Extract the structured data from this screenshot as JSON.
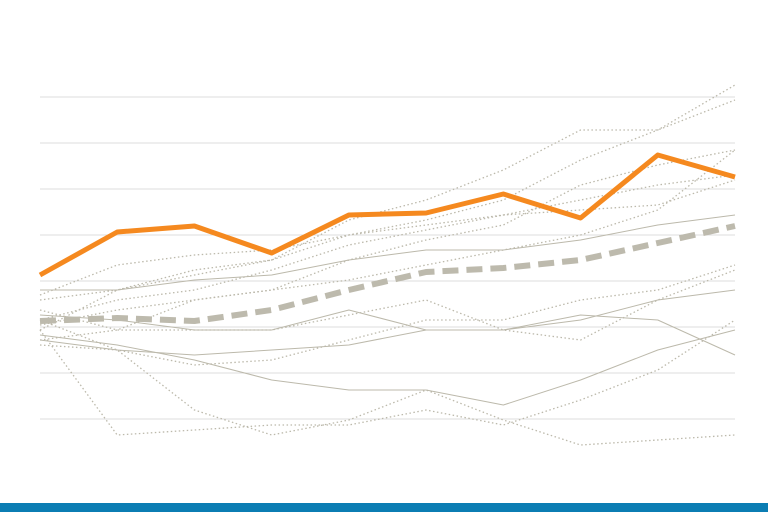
{
  "chart_data": {
    "type": "line",
    "categories": [
      null,
      null,
      null,
      null,
      null,
      null,
      null,
      null,
      null,
      null
    ],
    "ylim": [
      -30,
      345
    ],
    "yticks": [
      0,
      46,
      92,
      138,
      184,
      230,
      276,
      322
    ],
    "grid": true,
    "grid_color": "#dddddd",
    "series": [
      {
        "color": "#bcb9ab",
        "style": "dotted",
        "width": 1.3,
        "values": [
          79,
          89,
          119,
          129,
          159,
          179,
          194,
          234,
          254,
          269
        ]
      },
      {
        "color": "#bcb9ab",
        "style": "dotted",
        "width": 1.3,
        "values": [
          119,
          129,
          144,
          159,
          184,
          199,
          219,
          259,
          289,
          334
        ]
      },
      {
        "color": "#bcb9ab",
        "style": "dotted",
        "width": 1.3,
        "values": [
          99,
          119,
          129,
          149,
          174,
          189,
          204,
          219,
          234,
          244
        ]
      },
      {
        "color": "#bcb9ab",
        "style": "solid",
        "width": 1,
        "values": [
          84,
          74,
          59,
          39,
          29,
          29,
          14,
          39,
          69,
          89
        ]
      },
      {
        "color": "#bcb9ab",
        "style": "dotted",
        "width": 1.3,
        "values": [
          89,
          -16,
          -11,
          -6,
          -6,
          9,
          -6,
          19,
          49,
          99
        ]
      },
      {
        "color": "#bcb9ab",
        "style": "dotted",
        "width": 1.3,
        "values": [
          99,
          69,
          9,
          -16,
          -1,
          29,
          -1,
          -26,
          -21,
          -16
        ]
      },
      {
        "color": "#bcb9ab",
        "style": "solid",
        "width": 1,
        "values": [
          129,
          129,
          139,
          144,
          159,
          169,
          169,
          179,
          194,
          204
        ]
      },
      {
        "color": "#bcb9ab",
        "style": "dotted",
        "width": 1.3,
        "values": [
          74,
          69,
          54,
          59,
          79,
          99,
          99,
          119,
          129,
          154
        ]
      },
      {
        "color": "#bcb9ab",
        "style": "dotted",
        "width": 1.3,
        "values": [
          109,
          89,
          89,
          89,
          104,
          119,
          89,
          79,
          119,
          149
        ]
      },
      {
        "color": "#bcb9ab",
        "style": "dotted",
        "width": 1.3,
        "values": [
          124,
          154,
          164,
          169,
          184,
          194,
          204,
          209,
          214,
          239
        ]
      },
      {
        "color": "#bcb9ab",
        "style": "dotted",
        "width": 1.3,
        "values": [
          94,
          109,
          119,
          129,
          139,
          154,
          169,
          184,
          209,
          269
        ]
      },
      {
        "color": "#bcb9ab",
        "style": "solid",
        "width": 1,
        "values": [
          79,
          69,
          64,
          69,
          74,
          89,
          89,
          99,
          119,
          129
        ]
      },
      {
        "color": "#bcb9ab",
        "style": "dotted",
        "width": 1.3,
        "values": [
          89,
          129,
          149,
          159,
          199,
          219,
          249,
          289,
          289,
          319
        ]
      },
      {
        "color": "#bcb9ab",
        "style": "solid",
        "width": 1,
        "values": [
          104,
          99,
          89,
          89,
          109,
          89,
          89,
          104,
          99,
          64
        ]
      },
      {
        "color": "#bdbaad",
        "style": "dashed",
        "width": 6,
        "values": [
          98,
          101,
          98,
          109,
          129,
          147,
          151,
          159,
          176,
          193
        ]
      },
      {
        "color": "#f5891f",
        "style": "solid",
        "width": 5,
        "values": [
          144,
          187,
          193,
          166,
          204,
          206,
          225,
          201,
          264,
          242
        ]
      }
    ]
  }
}
